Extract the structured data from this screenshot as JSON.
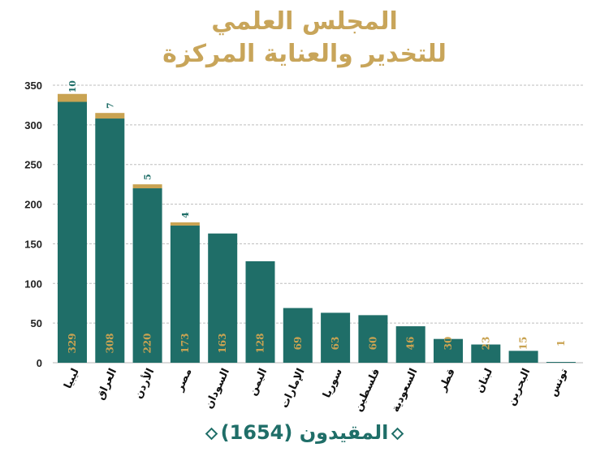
{
  "chart_data": {
    "type": "bar",
    "title": "المجلس العلمي",
    "subtitle": "للتخدير والعناية المركزة",
    "categories": [
      "ليبيا",
      "العراق",
      "الأردن",
      "مصر",
      "السودان",
      "اليمن",
      "الإمارات",
      "سوريا",
      "فلسطين",
      "السعودية",
      "قطر",
      "لبنان",
      "البحرين",
      "تونس"
    ],
    "series": [
      {
        "name": "primary",
        "color": "#1f6e68",
        "values": [
          329,
          308,
          220,
          173,
          163,
          128,
          69,
          63,
          60,
          46,
          30,
          23,
          15,
          1
        ]
      },
      {
        "name": "secondary",
        "color": "#c9a352",
        "values": [
          10,
          7,
          5,
          4,
          0,
          0,
          0,
          0,
          0,
          0,
          0,
          0,
          0,
          0
        ]
      }
    ],
    "stacked": true,
    "yticks": [
      0,
      50,
      100,
      150,
      200,
      250,
      300,
      350
    ],
    "ylim": [
      0,
      350
    ],
    "grid": true,
    "xlabel": "المقيدون (1654)",
    "ylabel": ""
  }
}
